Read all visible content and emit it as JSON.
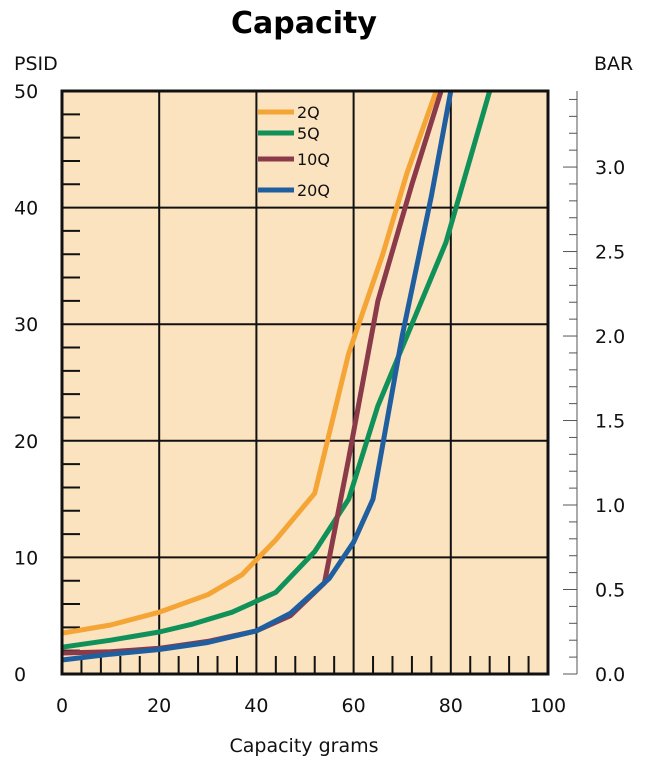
{
  "chart_data": {
    "type": "line",
    "title": "Capacity",
    "xlabel": "Capacity grams",
    "ylabel": "PSID",
    "y2label": "BAR",
    "xlim": [
      0,
      100
    ],
    "ylim": [
      0,
      50
    ],
    "y2lim": [
      0,
      3.45
    ],
    "x_ticks": [
      0,
      20,
      40,
      60,
      80,
      100
    ],
    "y_ticks": [
      0,
      10,
      20,
      30,
      40,
      50
    ],
    "y2_ticks": [
      "0.0",
      "0.5",
      "1.0",
      "1.5",
      "2.0",
      "2.5",
      "3.0"
    ],
    "y2_tick_values": [
      0.0,
      0.5,
      1.0,
      1.5,
      2.0,
      2.5,
      3.0
    ],
    "grid": true,
    "legend": "top-center inside",
    "background": "#fce3bf",
    "series": [
      {
        "name": "2Q",
        "color": "#f4a535",
        "x": [
          0,
          10,
          20,
          30,
          37,
          44,
          52,
          59,
          66,
          71,
          77
        ],
        "y": [
          3.5,
          4.2,
          5.3,
          6.8,
          8.5,
          11.5,
          15.5,
          27.5,
          36,
          43,
          50
        ]
      },
      {
        "name": "5Q",
        "color": "#11915a",
        "x": [
          0,
          10,
          20,
          27,
          35,
          44,
          52,
          59,
          65,
          72,
          79,
          88
        ],
        "y": [
          2.3,
          2.9,
          3.6,
          4.3,
          5.3,
          7,
          10.5,
          15,
          23,
          30,
          37,
          50
        ]
      },
      {
        "name": "10Q",
        "color": "#8b3a4a",
        "x": [
          0,
          10,
          20,
          30,
          40,
          47,
          54,
          59,
          65,
          72,
          78
        ],
        "y": [
          1.8,
          1.9,
          2.2,
          2.8,
          3.7,
          5,
          7.8,
          18.5,
          32,
          42,
          50
        ]
      },
      {
        "name": "20Q",
        "color": "#1f5fa0",
        "x": [
          0,
          10,
          20,
          30,
          40,
          47,
          55,
          60,
          64,
          70,
          76,
          80
        ],
        "y": [
          1.2,
          1.7,
          2.1,
          2.7,
          3.7,
          5.2,
          8.2,
          11.3,
          15,
          29,
          41,
          50
        ]
      }
    ]
  }
}
